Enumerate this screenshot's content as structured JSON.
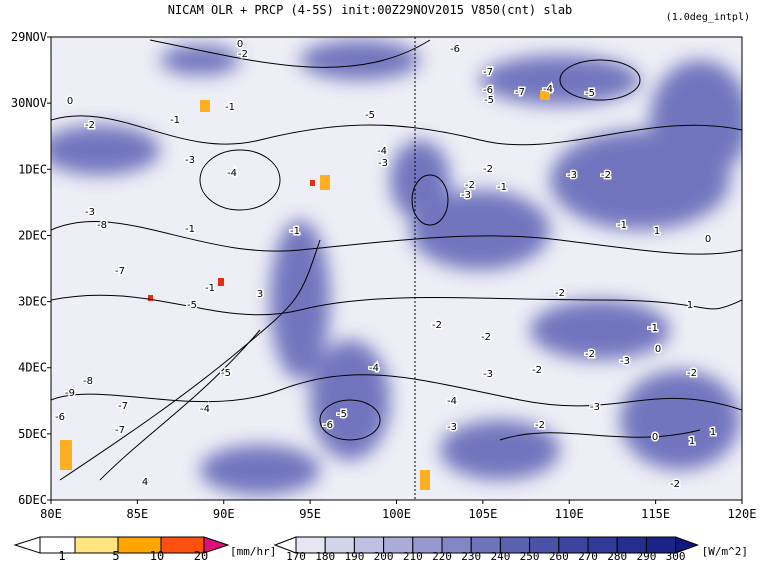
{
  "header": {
    "title": "NICAM  OLR + PRCP (4-5S) init:00Z29NOV2015 V850(cnt) slab",
    "note": "(1.0deg_intpl)"
  },
  "x_axis": {
    "labels": [
      "80E",
      "85E",
      "90E",
      "95E",
      "100E",
      "105E",
      "110E",
      "115E",
      "120E"
    ]
  },
  "y_axis": {
    "labels": [
      "29NOV",
      "30NOV",
      "1DEC",
      "2DEC",
      "3DEC",
      "4DEC",
      "5DEC",
      "6DEC"
    ]
  },
  "precip_colorbar": {
    "labels": [
      1,
      5,
      10,
      20
    ],
    "unit": "[mm/hr]"
  },
  "olr_colorbar": {
    "labels": [
      170,
      180,
      190,
      200,
      210,
      220,
      230,
      240,
      250,
      260,
      270,
      280,
      290,
      300
    ],
    "unit": "[W/m^2]"
  },
  "contour_labels": [
    "0",
    "-2",
    "-6",
    "-7",
    "-6",
    "-5",
    "-7",
    "-4",
    "-5",
    "0",
    "-2",
    "-1",
    "-1",
    "-5",
    "-4",
    "-3",
    "-3",
    "-4",
    "-2",
    "-2",
    "-3",
    "-1",
    "-3",
    "-2",
    "-3",
    "-8",
    "-1",
    "-1",
    "-1",
    "1",
    "0",
    "-7",
    "-1",
    "-5",
    "3",
    "-2",
    "-2",
    "-2",
    "-1",
    "1",
    "0",
    "-2",
    "-3",
    "-2",
    "-3",
    "-2",
    "-4",
    "-5",
    "-8",
    "-9",
    "-7",
    "-4",
    "-5",
    "-6",
    "-4",
    "-3",
    "-2",
    "-3",
    "0",
    "1",
    "1",
    "-7",
    "-6",
    "-2",
    "4"
  ]
}
